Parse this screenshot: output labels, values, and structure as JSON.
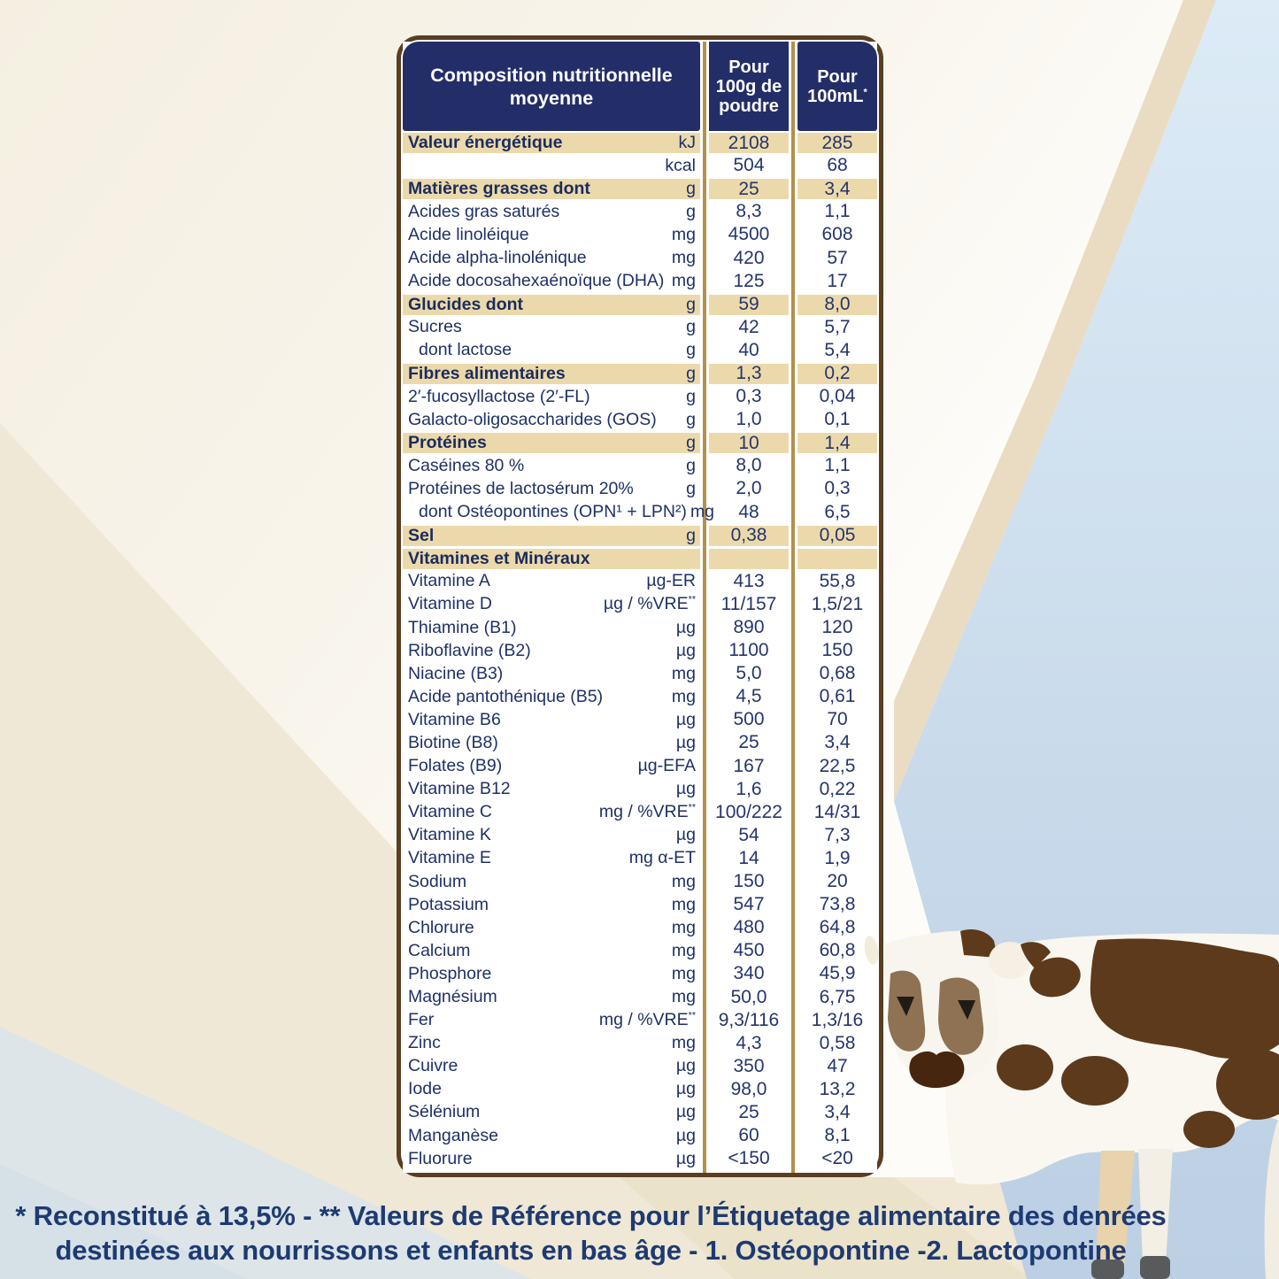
{
  "table": {
    "header": {
      "col1": {
        "lines": [
          "Composition nutritionnelle",
          "moyenne"
        ]
      },
      "col2": {
        "lines": [
          "Pour",
          "100g de",
          "poudre"
        ]
      },
      "col3": {
        "lines": [
          "Pour",
          "100mL*"
        ]
      }
    },
    "rows": [
      {
        "label": "Valeur énergétique",
        "unit": "kJ",
        "per100g": "2108",
        "per100ml": "285",
        "section": true,
        "indent": false
      },
      {
        "label": "",
        "unit": "kcal",
        "per100g": "504",
        "per100ml": "68",
        "section": false,
        "indent": false
      },
      {
        "label": "Matières grasses dont",
        "unit": "g",
        "per100g": "25",
        "per100ml": "3,4",
        "section": true,
        "indent": false
      },
      {
        "label": "Acides gras saturés",
        "unit": "g",
        "per100g": "8,3",
        "per100ml": "1,1",
        "section": false,
        "indent": false
      },
      {
        "label": "Acide linoléique",
        "unit": "mg",
        "per100g": "4500",
        "per100ml": "608",
        "section": false,
        "indent": false
      },
      {
        "label": "Acide alpha-linolénique",
        "unit": "mg",
        "per100g": "420",
        "per100ml": "57",
        "section": false,
        "indent": false
      },
      {
        "label": "Acide docosahexaénoïque (DHA)",
        "unit": "mg",
        "per100g": "125",
        "per100ml": "17",
        "section": false,
        "indent": false
      },
      {
        "label": "Glucides dont",
        "unit": "g",
        "per100g": "59",
        "per100ml": "8,0",
        "section": true,
        "indent": false
      },
      {
        "label": "Sucres",
        "unit": "g",
        "per100g": "42",
        "per100ml": "5,7",
        "section": false,
        "indent": false
      },
      {
        "label": "dont lactose",
        "unit": "g",
        "per100g": "40",
        "per100ml": "5,4",
        "section": false,
        "indent": true
      },
      {
        "label": "Fibres alimentaires",
        "unit": "g",
        "per100g": "1,3",
        "per100ml": "0,2",
        "section": true,
        "indent": false
      },
      {
        "label": "2′-fucosyllactose (2′-FL)",
        "unit": "g",
        "per100g": "0,3",
        "per100ml": "0,04",
        "section": false,
        "indent": false
      },
      {
        "label": "Galacto-oligosaccharides (GOS)",
        "unit": "g",
        "per100g": "1,0",
        "per100ml": "0,1",
        "section": false,
        "indent": false
      },
      {
        "label": "Protéines",
        "unit": "g",
        "per100g": "10",
        "per100ml": "1,4",
        "section": true,
        "indent": false
      },
      {
        "label": "Caséines 80 %",
        "unit": "g",
        "per100g": "8,0",
        "per100ml": "1,1",
        "section": false,
        "indent": false
      },
      {
        "label": "Protéines de lactosérum 20%",
        "unit": "g",
        "per100g": "2,0",
        "per100ml": "0,3",
        "section": false,
        "indent": false
      },
      {
        "label": "dont Ostéopontines (OPN¹ + LPN²)",
        "unit": "mg",
        "per100g": "48",
        "per100ml": "6,5",
        "section": false,
        "indent": true
      },
      {
        "label": "Sel",
        "unit": "g",
        "per100g": "0,38",
        "per100ml": "0,05",
        "section": true,
        "indent": false
      },
      {
        "label": "Vitamines et Minéraux",
        "unit": "",
        "per100g": "",
        "per100ml": "",
        "section": true,
        "indent": false
      },
      {
        "label": "Vitamine A",
        "unit": "µg-ER",
        "per100g": "413",
        "per100ml": "55,8",
        "section": false,
        "indent": false
      },
      {
        "label": "Vitamine D",
        "unit": "µg / %VRE**",
        "per100g": "11/157",
        "per100ml": "1,5/21",
        "section": false,
        "indent": false
      },
      {
        "label": "Thiamine (B1)",
        "unit": "µg",
        "per100g": "890",
        "per100ml": "120",
        "section": false,
        "indent": false
      },
      {
        "label": "Riboflavine (B2)",
        "unit": "µg",
        "per100g": "1100",
        "per100ml": "150",
        "section": false,
        "indent": false
      },
      {
        "label": "Niacine (B3)",
        "unit": "mg",
        "per100g": "5,0",
        "per100ml": "0,68",
        "section": false,
        "indent": false
      },
      {
        "label": "Acide pantothénique (B5)",
        "unit": "mg",
        "per100g": "4,5",
        "per100ml": "0,61",
        "section": false,
        "indent": false
      },
      {
        "label": "Vitamine B6",
        "unit": "µg",
        "per100g": "500",
        "per100ml": "70",
        "section": false,
        "indent": false
      },
      {
        "label": "Biotine (B8)",
        "unit": "µg",
        "per100g": "25",
        "per100ml": "3,4",
        "section": false,
        "indent": false
      },
      {
        "label": "Folates (B9)",
        "unit": "µg-EFA",
        "per100g": "167",
        "per100ml": "22,5",
        "section": false,
        "indent": false
      },
      {
        "label": "Vitamine B12",
        "unit": "µg",
        "per100g": "1,6",
        "per100ml": "0,22",
        "section": false,
        "indent": false
      },
      {
        "label": "Vitamine C",
        "unit": "mg / %VRE**",
        "per100g": "100/222",
        "per100ml": "14/31",
        "section": false,
        "indent": false
      },
      {
        "label": "Vitamine K",
        "unit": "µg",
        "per100g": "54",
        "per100ml": "7,3",
        "section": false,
        "indent": false
      },
      {
        "label": "Vitamine E",
        "unit": "mg α-ET",
        "per100g": "14",
        "per100ml": "1,9",
        "section": false,
        "indent": false
      },
      {
        "label": "Sodium",
        "unit": "mg",
        "per100g": "150",
        "per100ml": "20",
        "section": false,
        "indent": false
      },
      {
        "label": "Potassium",
        "unit": "mg",
        "per100g": "547",
        "per100ml": "73,8",
        "section": false,
        "indent": false
      },
      {
        "label": "Chlorure",
        "unit": "mg",
        "per100g": "480",
        "per100ml": "64,8",
        "section": false,
        "indent": false
      },
      {
        "label": "Calcium",
        "unit": "mg",
        "per100g": "450",
        "per100ml": "60,8",
        "section": false,
        "indent": false
      },
      {
        "label": "Phosphore",
        "unit": "mg",
        "per100g": "340",
        "per100ml": "45,9",
        "section": false,
        "indent": false
      },
      {
        "label": "Magnésium",
        "unit": "mg",
        "per100g": "50,0",
        "per100ml": "6,75",
        "section": false,
        "indent": false
      },
      {
        "label": "Fer",
        "unit": "mg / %VRE**",
        "per100g": "9,3/116",
        "per100ml": "1,3/16",
        "section": false,
        "indent": false
      },
      {
        "label": "Zinc",
        "unit": "mg",
        "per100g": "4,3",
        "per100ml": "0,58",
        "section": false,
        "indent": false
      },
      {
        "label": "Cuivre",
        "unit": "µg",
        "per100g": "350",
        "per100ml": "47",
        "section": false,
        "indent": false
      },
      {
        "label": "Iode",
        "unit": "µg",
        "per100g": "98,0",
        "per100ml": "13,2",
        "section": false,
        "indent": false
      },
      {
        "label": "Sélénium",
        "unit": "µg",
        "per100g": "25",
        "per100ml": "3,4",
        "section": false,
        "indent": false
      },
      {
        "label": "Manganèse",
        "unit": "µg",
        "per100g": "60",
        "per100ml": "8,1",
        "section": false,
        "indent": false
      },
      {
        "label": "Fluorure",
        "unit": "µg",
        "per100g": "<150",
        "per100ml": "<20",
        "section": false,
        "indent": false
      }
    ]
  },
  "footnote": {
    "line1": "* Reconstitué à 13,5% - ** Valeurs de Référence pour l’Étiquetage alimentaire des denrées",
    "line2": "destinées aux nourrissons et enfants en bas âge - 1. Ostéopontine -2. Lactopontine"
  },
  "illustration": "cow",
  "colors": {
    "header_navy": "#232e68",
    "row_tan": "#ecd9ab",
    "gold_separator": "#b2914c",
    "border_brown": "#5a3e22",
    "text_navy": "#1e3166",
    "footnote_navy": "#1d3a72",
    "background_blue": "#cfe2f0",
    "background_cream": "#f4efe1",
    "cow_spot_brown": "#5d3a1b"
  }
}
